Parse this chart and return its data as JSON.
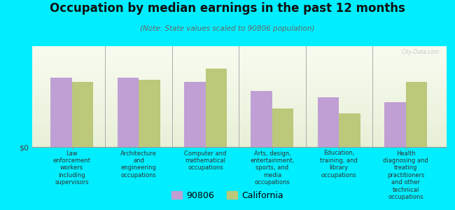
{
  "title": "Occupation by median earnings in the past 12 months",
  "subtitle": "(Note: State values scaled to 90806 population)",
  "categories": [
    "Law\nenforcement\nworkers\nincluding\nsupervisors",
    "Architecture\nand\nengineering\noccupations",
    "Computer and\nmathematical\noccupations",
    "Arts, design,\nentertainment,\nsports, and\nmedia\noccupations",
    "Education,\ntraining, and\nlibrary\noccupations",
    "Health\ndiagnosing and\ntreating\npractitioners\nand other\ntechnical\noccupations"
  ],
  "values_90806": [
    0.72,
    0.72,
    0.68,
    0.58,
    0.52,
    0.47
  ],
  "values_california": [
    0.68,
    0.7,
    0.82,
    0.4,
    0.35,
    0.68
  ],
  "color_90806": "#bf9fd4",
  "color_california": "#bcc87a",
  "background_outer": "#00eeff",
  "background_plot_top": "#e8f0d8",
  "background_plot_bottom": "#f5faf0",
  "ylabel": "$0",
  "bar_width": 0.32,
  "legend_90806": "90806",
  "legend_california": "California",
  "watermark": "City-Data.com",
  "title_fontsize": 12,
  "subtitle_fontsize": 7.5,
  "tick_fontsize": 6.5,
  "legend_fontsize": 9
}
